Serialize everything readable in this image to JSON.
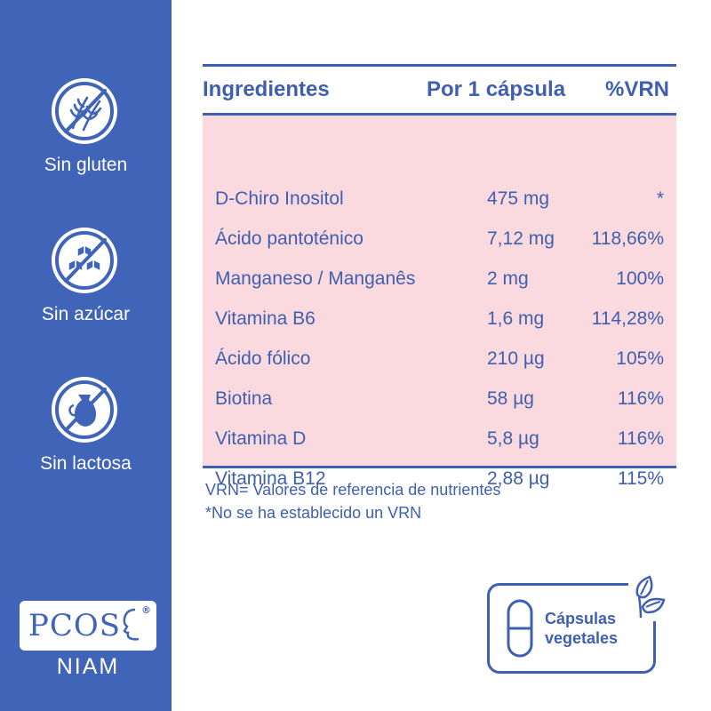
{
  "sidebar": {
    "badges": [
      {
        "label": "Sin gluten",
        "icon": "no-gluten-icon"
      },
      {
        "label": "Sin azúcar",
        "icon": "no-sugar-icon"
      },
      {
        "label": "Sin lactosa",
        "icon": "no-lactose-icon"
      }
    ],
    "logo": {
      "main": "PCOS",
      "reg": "®",
      "sub": "NIAM"
    }
  },
  "table": {
    "headers": {
      "ingredient": "Ingredientes",
      "per_capsule": "Por 1 cápsula",
      "vrn": "%VRN"
    },
    "rows": [
      {
        "name": "D-Chiro Inositol",
        "amount": "475 mg",
        "vrn": "*"
      },
      {
        "name": "Ácido pantoténico",
        "amount": "7,12 mg",
        "vrn": "118,66%"
      },
      {
        "name": "Manganeso / Manganês",
        "amount": "2 mg",
        "vrn": "100%"
      },
      {
        "name": "Vitamina B6",
        "amount": "1,6 mg",
        "vrn": "114,28%"
      },
      {
        "name": "Ácido fólico",
        "amount": "210 µg",
        "vrn": "105%"
      },
      {
        "name": "Biotina",
        "amount": "58 µg",
        "vrn": "116%"
      },
      {
        "name": "Vitamina D",
        "amount": "5,8 µg",
        "vrn": "116%"
      },
      {
        "name": "Vitamina B12",
        "amount": "2,88 µg",
        "vrn": "115%"
      }
    ]
  },
  "notes": {
    "line1": "VRN= Valores de referencia de nutrientes",
    "line2": "*No se ha establecido un VRN"
  },
  "veg_badge": {
    "line1": "Cápsulas",
    "line2": "vegetales"
  },
  "colors": {
    "brand_blue": "#3f64b8",
    "text_blue": "#3f5fb0",
    "table_pink": "#fad9df"
  }
}
